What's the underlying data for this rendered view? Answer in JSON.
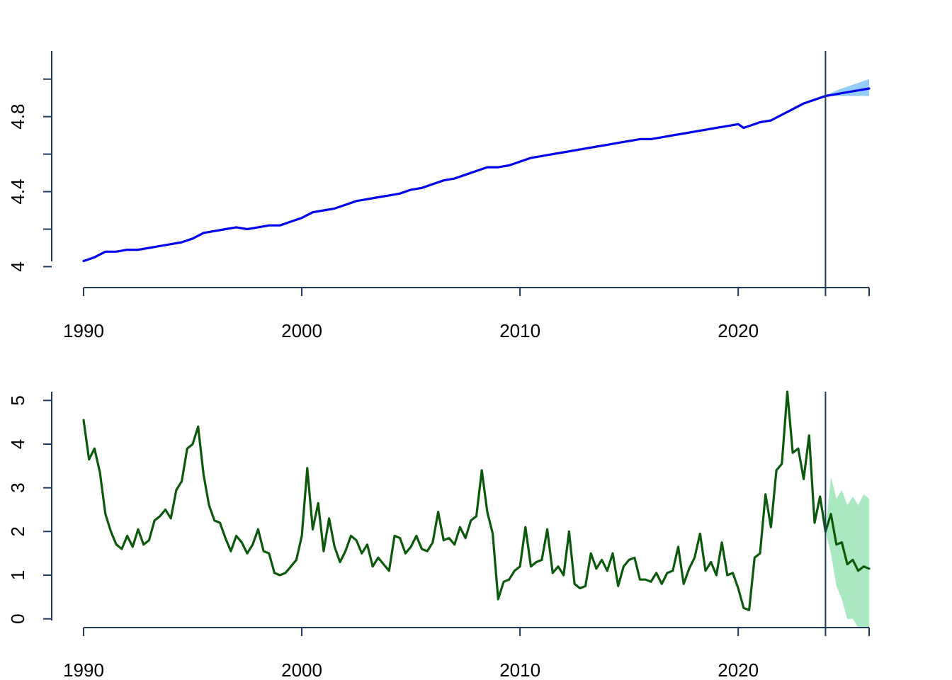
{
  "chart_data": [
    {
      "type": "line",
      "title": "",
      "xlabel": "",
      "ylabel": "",
      "xlim": [
        1990,
        2026
      ],
      "ylim": [
        3.93,
        5.15
      ],
      "x_ticks": [
        1990,
        2000,
        2010,
        2020
      ],
      "x_tick_labels": [
        "1990",
        "2000",
        "2010",
        "2020"
      ],
      "y_ticks": [
        4.0,
        4.2,
        4.4,
        4.6,
        4.8,
        5.0
      ],
      "y_tick_labels": [
        "4",
        "",
        "4.4",
        "",
        "4.8",
        ""
      ],
      "forecast_start": 2024,
      "grid": false,
      "colors": {
        "line": "#0000ee",
        "forecast_band": "#5ab4f5"
      },
      "series": [
        {
          "values": [
            [
              1990.0,
              4.03
            ],
            [
              1990.5,
              4.05
            ],
            [
              1991.0,
              4.08
            ],
            [
              1991.5,
              4.08
            ],
            [
              1992.0,
              4.09
            ],
            [
              1992.5,
              4.09
            ],
            [
              1993.0,
              4.1
            ],
            [
              1993.5,
              4.11
            ],
            [
              1994.0,
              4.12
            ],
            [
              1994.5,
              4.13
            ],
            [
              1995.0,
              4.15
            ],
            [
              1995.5,
              4.18
            ],
            [
              1996.0,
              4.19
            ],
            [
              1996.5,
              4.2
            ],
            [
              1997.0,
              4.21
            ],
            [
              1997.5,
              4.2
            ],
            [
              1998.0,
              4.21
            ],
            [
              1998.5,
              4.22
            ],
            [
              1999.0,
              4.22
            ],
            [
              1999.5,
              4.24
            ],
            [
              2000.0,
              4.26
            ],
            [
              2000.5,
              4.29
            ],
            [
              2001.0,
              4.3
            ],
            [
              2001.5,
              4.31
            ],
            [
              2002.0,
              4.33
            ],
            [
              2002.5,
              4.35
            ],
            [
              2003.0,
              4.36
            ],
            [
              2003.5,
              4.37
            ],
            [
              2004.0,
              4.38
            ],
            [
              2004.5,
              4.39
            ],
            [
              2005.0,
              4.41
            ],
            [
              2005.5,
              4.42
            ],
            [
              2006.0,
              4.44
            ],
            [
              2006.5,
              4.46
            ],
            [
              2007.0,
              4.47
            ],
            [
              2007.5,
              4.49
            ],
            [
              2008.0,
              4.51
            ],
            [
              2008.5,
              4.53
            ],
            [
              2009.0,
              4.53
            ],
            [
              2009.5,
              4.54
            ],
            [
              2010.0,
              4.56
            ],
            [
              2010.5,
              4.58
            ],
            [
              2011.0,
              4.59
            ],
            [
              2011.5,
              4.6
            ],
            [
              2012.0,
              4.61
            ],
            [
              2012.5,
              4.62
            ],
            [
              2013.0,
              4.63
            ],
            [
              2013.5,
              4.64
            ],
            [
              2014.0,
              4.65
            ],
            [
              2014.5,
              4.66
            ],
            [
              2015.0,
              4.67
            ],
            [
              2015.5,
              4.68
            ],
            [
              2016.0,
              4.68
            ],
            [
              2016.5,
              4.69
            ],
            [
              2017.0,
              4.7
            ],
            [
              2017.5,
              4.71
            ],
            [
              2018.0,
              4.72
            ],
            [
              2018.5,
              4.73
            ],
            [
              2019.0,
              4.74
            ],
            [
              2019.5,
              4.75
            ],
            [
              2020.0,
              4.76
            ],
            [
              2020.25,
              4.74
            ],
            [
              2020.5,
              4.75
            ],
            [
              2021.0,
              4.77
            ],
            [
              2021.5,
              4.78
            ],
            [
              2022.0,
              4.81
            ],
            [
              2022.5,
              4.84
            ],
            [
              2023.0,
              4.87
            ],
            [
              2023.5,
              4.89
            ],
            [
              2024.0,
              4.91
            ]
          ]
        }
      ],
      "forecast": {
        "values": [
          [
            2024.0,
            4.91
          ],
          [
            2024.5,
            4.92
          ],
          [
            2025.0,
            4.93
          ],
          [
            2025.5,
            4.94
          ],
          [
            2026.0,
            4.95
          ]
        ],
        "upper": [
          [
            2024.0,
            4.91
          ],
          [
            2024.5,
            4.94
          ],
          [
            2025.0,
            4.96
          ],
          [
            2025.5,
            4.98
          ],
          [
            2026.0,
            5.0
          ]
        ],
        "lower": [
          [
            2024.0,
            4.91
          ],
          [
            2024.5,
            4.91
          ],
          [
            2025.0,
            4.91
          ],
          [
            2025.5,
            4.91
          ],
          [
            2026.0,
            4.91
          ]
        ]
      }
    },
    {
      "type": "line",
      "title": "",
      "xlabel": "",
      "ylabel": "",
      "xlim": [
        1990,
        2026
      ],
      "ylim": [
        -0.2,
        5.2
      ],
      "x_ticks": [
        1990,
        2000,
        2010,
        2020
      ],
      "x_tick_labels": [
        "1990",
        "2000",
        "2010",
        "2020"
      ],
      "y_ticks": [
        0,
        1,
        2,
        3,
        4,
        5
      ],
      "y_tick_labels": [
        "0",
        "1",
        "2",
        "3",
        "4",
        "5"
      ],
      "forecast_start": 2024,
      "grid": false,
      "colors": {
        "line": "#0b5a0b",
        "forecast_band": "#7ddba0"
      },
      "series": [
        {
          "values": [
            [
              1990.0,
              4.55
            ],
            [
              1990.25,
              3.65
            ],
            [
              1990.5,
              3.9
            ],
            [
              1990.75,
              3.35
            ],
            [
              1991.0,
              2.4
            ],
            [
              1991.25,
              2.0
            ],
            [
              1991.5,
              1.7
            ],
            [
              1991.75,
              1.6
            ],
            [
              1992.0,
              1.9
            ],
            [
              1992.25,
              1.65
            ],
            [
              1992.5,
              2.05
            ],
            [
              1992.75,
              1.7
            ],
            [
              1993.0,
              1.8
            ],
            [
              1993.25,
              2.25
            ],
            [
              1993.5,
              2.35
            ],
            [
              1993.75,
              2.5
            ],
            [
              1994.0,
              2.3
            ],
            [
              1994.25,
              2.95
            ],
            [
              1994.5,
              3.15
            ],
            [
              1994.75,
              3.9
            ],
            [
              1995.0,
              4.0
            ],
            [
              1995.25,
              4.4
            ],
            [
              1995.5,
              3.3
            ],
            [
              1995.75,
              2.6
            ],
            [
              1996.0,
              2.25
            ],
            [
              1996.25,
              2.2
            ],
            [
              1996.5,
              1.85
            ],
            [
              1996.75,
              1.55
            ],
            [
              1997.0,
              1.9
            ],
            [
              1997.25,
              1.75
            ],
            [
              1997.5,
              1.5
            ],
            [
              1997.75,
              1.7
            ],
            [
              1998.0,
              2.05
            ],
            [
              1998.25,
              1.55
            ],
            [
              1998.5,
              1.5
            ],
            [
              1998.75,
              1.05
            ],
            [
              1999.0,
              1.0
            ],
            [
              1999.25,
              1.05
            ],
            [
              1999.5,
              1.2
            ],
            [
              1999.75,
              1.35
            ],
            [
              2000.0,
              1.9
            ],
            [
              2000.25,
              3.45
            ],
            [
              2000.5,
              2.05
            ],
            [
              2000.75,
              2.65
            ],
            [
              2001.0,
              1.55
            ],
            [
              2001.25,
              2.3
            ],
            [
              2001.5,
              1.65
            ],
            [
              2001.75,
              1.3
            ],
            [
              2002.0,
              1.55
            ],
            [
              2002.25,
              1.9
            ],
            [
              2002.5,
              1.8
            ],
            [
              2002.75,
              1.5
            ],
            [
              2003.0,
              1.7
            ],
            [
              2003.25,
              1.2
            ],
            [
              2003.5,
              1.4
            ],
            [
              2003.75,
              1.25
            ],
            [
              2004.0,
              1.1
            ],
            [
              2004.25,
              1.9
            ],
            [
              2004.5,
              1.85
            ],
            [
              2004.75,
              1.5
            ],
            [
              2005.0,
              1.65
            ],
            [
              2005.25,
              1.9
            ],
            [
              2005.5,
              1.6
            ],
            [
              2005.75,
              1.55
            ],
            [
              2006.0,
              1.75
            ],
            [
              2006.25,
              2.45
            ],
            [
              2006.5,
              1.8
            ],
            [
              2006.75,
              1.85
            ],
            [
              2007.0,
              1.7
            ],
            [
              2007.25,
              2.1
            ],
            [
              2007.5,
              1.85
            ],
            [
              2007.75,
              2.25
            ],
            [
              2008.0,
              2.35
            ],
            [
              2008.25,
              3.4
            ],
            [
              2008.5,
              2.45
            ],
            [
              2008.75,
              1.95
            ],
            [
              2009.0,
              0.45
            ],
            [
              2009.25,
              0.85
            ],
            [
              2009.5,
              0.9
            ],
            [
              2009.75,
              1.1
            ],
            [
              2010.0,
              1.2
            ],
            [
              2010.25,
              2.1
            ],
            [
              2010.5,
              1.2
            ],
            [
              2010.75,
              1.3
            ],
            [
              2011.0,
              1.35
            ],
            [
              2011.25,
              2.05
            ],
            [
              2011.5,
              1.05
            ],
            [
              2011.75,
              1.2
            ],
            [
              2012.0,
              1.0
            ],
            [
              2012.25,
              2.0
            ],
            [
              2012.5,
              0.8
            ],
            [
              2012.75,
              0.7
            ],
            [
              2013.0,
              0.75
            ],
            [
              2013.25,
              1.5
            ],
            [
              2013.5,
              1.15
            ],
            [
              2013.75,
              1.35
            ],
            [
              2014.0,
              1.1
            ],
            [
              2014.25,
              1.5
            ],
            [
              2014.5,
              0.75
            ],
            [
              2014.75,
              1.2
            ],
            [
              2015.0,
              1.35
            ],
            [
              2015.25,
              1.4
            ],
            [
              2015.5,
              0.9
            ],
            [
              2015.75,
              0.9
            ],
            [
              2016.0,
              0.85
            ],
            [
              2016.25,
              1.05
            ],
            [
              2016.5,
              0.8
            ],
            [
              2016.75,
              1.05
            ],
            [
              2017.0,
              1.1
            ],
            [
              2017.25,
              1.65
            ],
            [
              2017.5,
              0.8
            ],
            [
              2017.75,
              1.15
            ],
            [
              2018.0,
              1.4
            ],
            [
              2018.25,
              1.95
            ],
            [
              2018.5,
              1.1
            ],
            [
              2018.75,
              1.3
            ],
            [
              2019.0,
              1.0
            ],
            [
              2019.25,
              1.75
            ],
            [
              2019.5,
              1.0
            ],
            [
              2019.75,
              1.05
            ],
            [
              2020.0,
              0.7
            ],
            [
              2020.25,
              0.25
            ],
            [
              2020.5,
              0.2
            ],
            [
              2020.75,
              1.4
            ],
            [
              2021.0,
              1.5
            ],
            [
              2021.25,
              2.85
            ],
            [
              2021.5,
              2.1
            ],
            [
              2021.75,
              3.4
            ],
            [
              2022.0,
              3.55
            ],
            [
              2022.25,
              5.2
            ],
            [
              2022.5,
              3.8
            ],
            [
              2022.75,
              3.9
            ],
            [
              2023.0,
              3.2
            ],
            [
              2023.25,
              4.2
            ],
            [
              2023.5,
              2.2
            ],
            [
              2023.75,
              2.8
            ],
            [
              2024.0,
              2.0
            ]
          ]
        }
      ],
      "forecast": {
        "values": [
          [
            2024.0,
            2.0
          ],
          [
            2024.25,
            2.4
          ],
          [
            2024.5,
            1.7
          ],
          [
            2024.75,
            1.75
          ],
          [
            2025.0,
            1.25
          ],
          [
            2025.25,
            1.35
          ],
          [
            2025.5,
            1.1
          ],
          [
            2025.75,
            1.2
          ],
          [
            2026.0,
            1.15
          ]
        ],
        "upper": [
          [
            2024.0,
            2.0
          ],
          [
            2024.25,
            3.25
          ],
          [
            2024.5,
            2.75
          ],
          [
            2024.75,
            2.95
          ],
          [
            2025.0,
            2.6
          ],
          [
            2025.25,
            2.8
          ],
          [
            2025.5,
            2.6
          ],
          [
            2025.75,
            2.85
          ],
          [
            2026.0,
            2.75
          ]
        ],
        "lower": [
          [
            2024.0,
            2.0
          ],
          [
            2024.25,
            1.5
          ],
          [
            2024.5,
            0.75
          ],
          [
            2024.75,
            0.45
          ],
          [
            2025.0,
            0.0
          ],
          [
            2025.25,
            0.0
          ],
          [
            2025.5,
            -0.2
          ],
          [
            2025.75,
            -0.2
          ],
          [
            2026.0,
            -0.2
          ]
        ]
      }
    }
  ]
}
